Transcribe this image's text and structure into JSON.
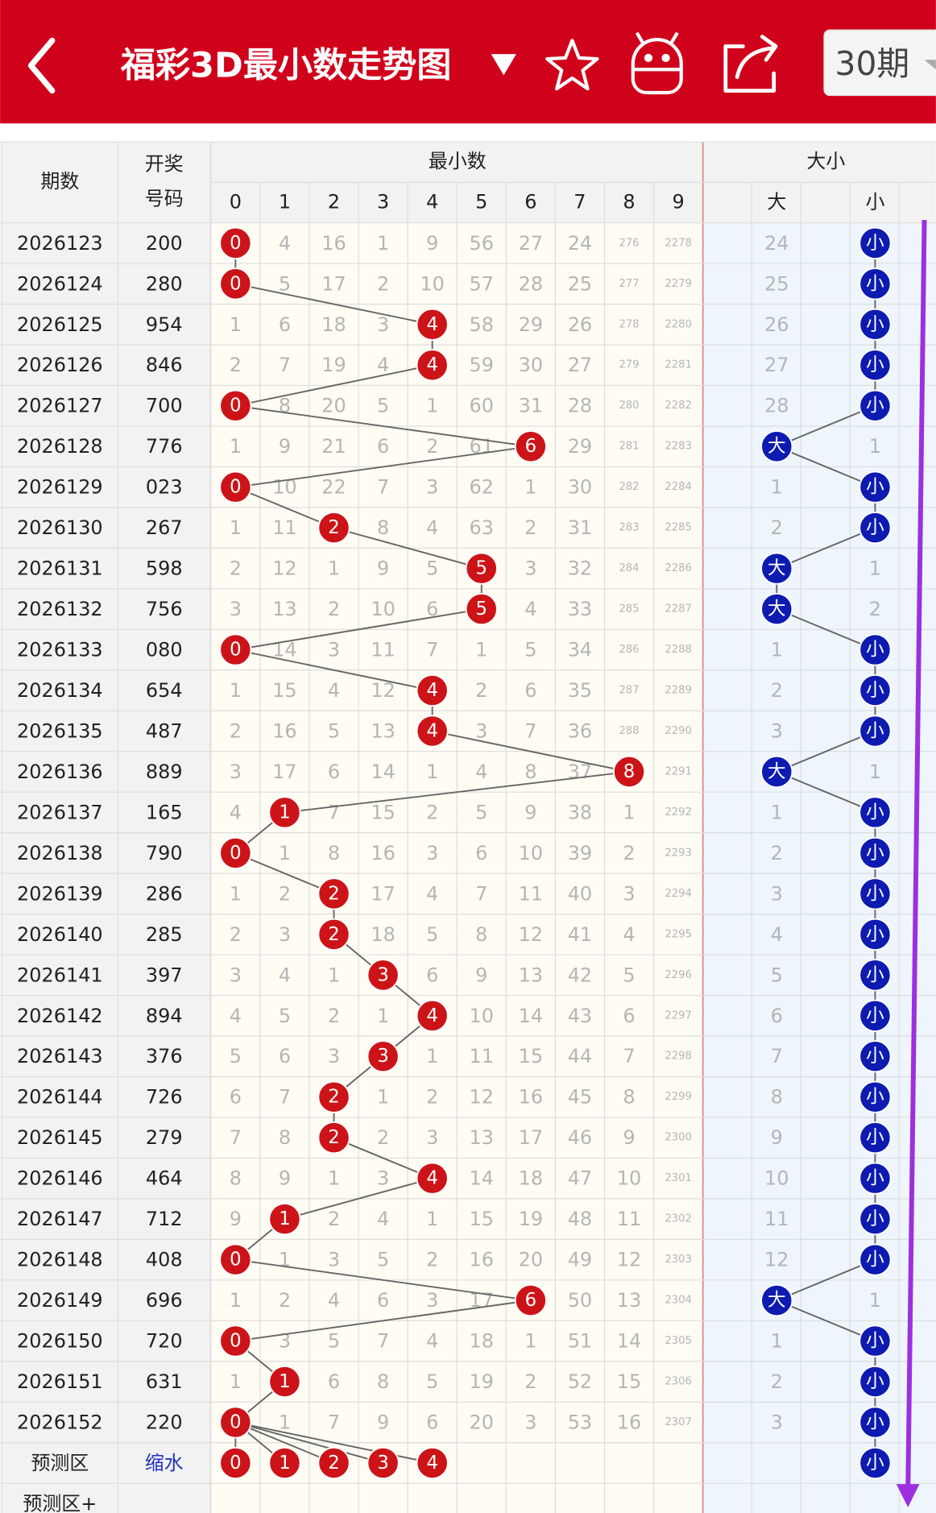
{
  "header": {
    "title": "福彩3D最小数走势图",
    "period_selector": "30期"
  },
  "table": {
    "period_header": "期数",
    "number_header": [
      "开奖",
      "号码"
    ],
    "min_header": "最小数",
    "digit_columns": [
      0,
      1,
      2,
      3,
      4,
      5,
      6,
      7,
      8,
      9
    ],
    "size_header": "大小",
    "size_columns": [
      "大",
      "小"
    ],
    "rows": [
      {
        "period": "2026123",
        "number": "200",
        "cells": [
          {
            "ball": 0
          },
          4,
          16,
          1,
          9,
          56,
          27,
          24,
          276,
          2278
        ],
        "big": 24,
        "small": {
          "ball": "小"
        }
      },
      {
        "period": "2026124",
        "number": "280",
        "cells": [
          {
            "ball": 0
          },
          5,
          17,
          2,
          10,
          57,
          28,
          25,
          277,
          2279
        ],
        "big": 25,
        "small": {
          "ball": "小"
        }
      },
      {
        "period": "2026125",
        "number": "954",
        "cells": [
          1,
          6,
          18,
          3,
          {
            "ball": 4
          },
          58,
          29,
          26,
          278,
          2280
        ],
        "big": 26,
        "small": {
          "ball": "小"
        }
      },
      {
        "period": "2026126",
        "number": "846",
        "cells": [
          2,
          7,
          19,
          4,
          {
            "ball": 4
          },
          59,
          30,
          27,
          279,
          2281
        ],
        "big": 27,
        "small": {
          "ball": "小"
        }
      },
      {
        "period": "2026127",
        "number": "700",
        "cells": [
          {
            "ball": 0
          },
          8,
          20,
          5,
          1,
          60,
          31,
          28,
          280,
          2282
        ],
        "big": 28,
        "small": {
          "ball": "小"
        }
      },
      {
        "period": "2026128",
        "number": "776",
        "cells": [
          1,
          9,
          21,
          6,
          2,
          61,
          {
            "ball": 6
          },
          29,
          281,
          2283
        ],
        "big": {
          "ball": "大"
        },
        "small": 1
      },
      {
        "period": "2026129",
        "number": "023",
        "cells": [
          {
            "ball": 0
          },
          10,
          22,
          7,
          3,
          62,
          1,
          30,
          282,
          2284
        ],
        "big": 1,
        "small": {
          "ball": "小"
        }
      },
      {
        "period": "2026130",
        "number": "267",
        "cells": [
          1,
          11,
          {
            "ball": 2
          },
          8,
          4,
          63,
          2,
          31,
          283,
          2285
        ],
        "big": 2,
        "small": {
          "ball": "小"
        }
      },
      {
        "period": "2026131",
        "number": "598",
        "cells": [
          2,
          12,
          1,
          9,
          5,
          {
            "ball": 5
          },
          3,
          32,
          284,
          2286
        ],
        "big": {
          "ball": "大"
        },
        "small": 1
      },
      {
        "period": "2026132",
        "number": "756",
        "cells": [
          3,
          13,
          2,
          10,
          6,
          {
            "ball": 5
          },
          4,
          33,
          285,
          2287
        ],
        "big": {
          "ball": "大"
        },
        "small": 2
      },
      {
        "period": "2026133",
        "number": "080",
        "cells": [
          {
            "ball": 0
          },
          14,
          3,
          11,
          7,
          1,
          5,
          34,
          286,
          2288
        ],
        "big": 1,
        "small": {
          "ball": "小"
        }
      },
      {
        "period": "2026134",
        "number": "654",
        "cells": [
          1,
          15,
          4,
          12,
          {
            "ball": 4
          },
          2,
          6,
          35,
          287,
          2289
        ],
        "big": 2,
        "small": {
          "ball": "小"
        }
      },
      {
        "period": "2026135",
        "number": "487",
        "cells": [
          2,
          16,
          5,
          13,
          {
            "ball": 4
          },
          3,
          7,
          36,
          288,
          2290
        ],
        "big": 3,
        "small": {
          "ball": "小"
        }
      },
      {
        "period": "2026136",
        "number": "889",
        "cells": [
          3,
          17,
          6,
          14,
          1,
          4,
          8,
          37,
          {
            "ball": 8
          },
          2291
        ],
        "big": {
          "ball": "大"
        },
        "small": 1
      },
      {
        "period": "2026137",
        "number": "165",
        "cells": [
          4,
          {
            "ball": 1
          },
          7,
          15,
          2,
          5,
          9,
          38,
          1,
          2292
        ],
        "big": 1,
        "small": {
          "ball": "小"
        }
      },
      {
        "period": "2026138",
        "number": "790",
        "cells": [
          {
            "ball": 0
          },
          1,
          8,
          16,
          3,
          6,
          10,
          39,
          2,
          2293
        ],
        "big": 2,
        "small": {
          "ball": "小"
        }
      },
      {
        "period": "2026139",
        "number": "286",
        "cells": [
          1,
          2,
          {
            "ball": 2
          },
          17,
          4,
          7,
          11,
          40,
          3,
          2294
        ],
        "big": 3,
        "small": {
          "ball": "小"
        }
      },
      {
        "period": "2026140",
        "number": "285",
        "cells": [
          2,
          3,
          {
            "ball": 2
          },
          18,
          5,
          8,
          12,
          41,
          4,
          2295
        ],
        "big": 4,
        "small": {
          "ball": "小"
        }
      },
      {
        "period": "2026141",
        "number": "397",
        "cells": [
          3,
          4,
          1,
          {
            "ball": 3
          },
          6,
          9,
          13,
          42,
          5,
          2296
        ],
        "big": 5,
        "small": {
          "ball": "小"
        }
      },
      {
        "period": "2026142",
        "number": "894",
        "cells": [
          4,
          5,
          2,
          1,
          {
            "ball": 4
          },
          10,
          14,
          43,
          6,
          2297
        ],
        "big": 6,
        "small": {
          "ball": "小"
        }
      },
      {
        "period": "2026143",
        "number": "376",
        "cells": [
          5,
          6,
          3,
          {
            "ball": 3
          },
          1,
          11,
          15,
          44,
          7,
          2298
        ],
        "big": 7,
        "small": {
          "ball": "小"
        }
      },
      {
        "period": "2026144",
        "number": "726",
        "cells": [
          6,
          7,
          {
            "ball": 2
          },
          1,
          2,
          12,
          16,
          45,
          8,
          2299
        ],
        "big": 8,
        "small": {
          "ball": "小"
        }
      },
      {
        "period": "2026145",
        "number": "279",
        "cells": [
          7,
          8,
          {
            "ball": 2
          },
          2,
          3,
          13,
          17,
          46,
          9,
          2300
        ],
        "big": 9,
        "small": {
          "ball": "小"
        }
      },
      {
        "period": "2026146",
        "number": "464",
        "cells": [
          8,
          9,
          1,
          3,
          {
            "ball": 4
          },
          14,
          18,
          47,
          10,
          2301
        ],
        "big": 10,
        "small": {
          "ball": "小"
        }
      },
      {
        "period": "2026147",
        "number": "712",
        "cells": [
          9,
          {
            "ball": 1
          },
          2,
          4,
          1,
          15,
          19,
          48,
          11,
          2302
        ],
        "big": 11,
        "small": {
          "ball": "小"
        }
      },
      {
        "period": "2026148",
        "number": "408",
        "cells": [
          {
            "ball": 0
          },
          1,
          3,
          5,
          2,
          16,
          20,
          49,
          12,
          2303
        ],
        "big": 12,
        "small": {
          "ball": "小"
        }
      },
      {
        "period": "2026149",
        "number": "696",
        "cells": [
          1,
          2,
          4,
          6,
          3,
          17,
          {
            "ball": 6
          },
          50,
          13,
          2304
        ],
        "big": {
          "ball": "大"
        },
        "small": 1
      },
      {
        "period": "2026150",
        "number": "720",
        "cells": [
          {
            "ball": 0
          },
          3,
          5,
          7,
          4,
          18,
          1,
          51,
          14,
          2305
        ],
        "big": 1,
        "small": {
          "ball": "小"
        }
      },
      {
        "period": "2026151",
        "number": "631",
        "cells": [
          1,
          {
            "ball": 1
          },
          6,
          8,
          5,
          19,
          2,
          52,
          15,
          2306
        ],
        "big": 2,
        "small": {
          "ball": "小"
        }
      },
      {
        "period": "2026152",
        "number": "220",
        "cells": [
          {
            "ball": 0
          },
          1,
          7,
          9,
          6,
          20,
          3,
          53,
          16,
          2307
        ],
        "big": 3,
        "small": {
          "ball": "小"
        }
      }
    ],
    "forecast": {
      "label": "预测区",
      "number": "缩水",
      "cells": [
        {
          "ball": 0
        },
        {
          "ball": 1
        },
        {
          "ball": 2
        },
        {
          "ball": 3
        },
        {
          "ball": 4
        },
        null,
        null,
        null,
        null,
        null
      ],
      "small": {
        "ball": "小"
      }
    },
    "forecast_plus": {
      "label": "预测区+"
    }
  }
}
